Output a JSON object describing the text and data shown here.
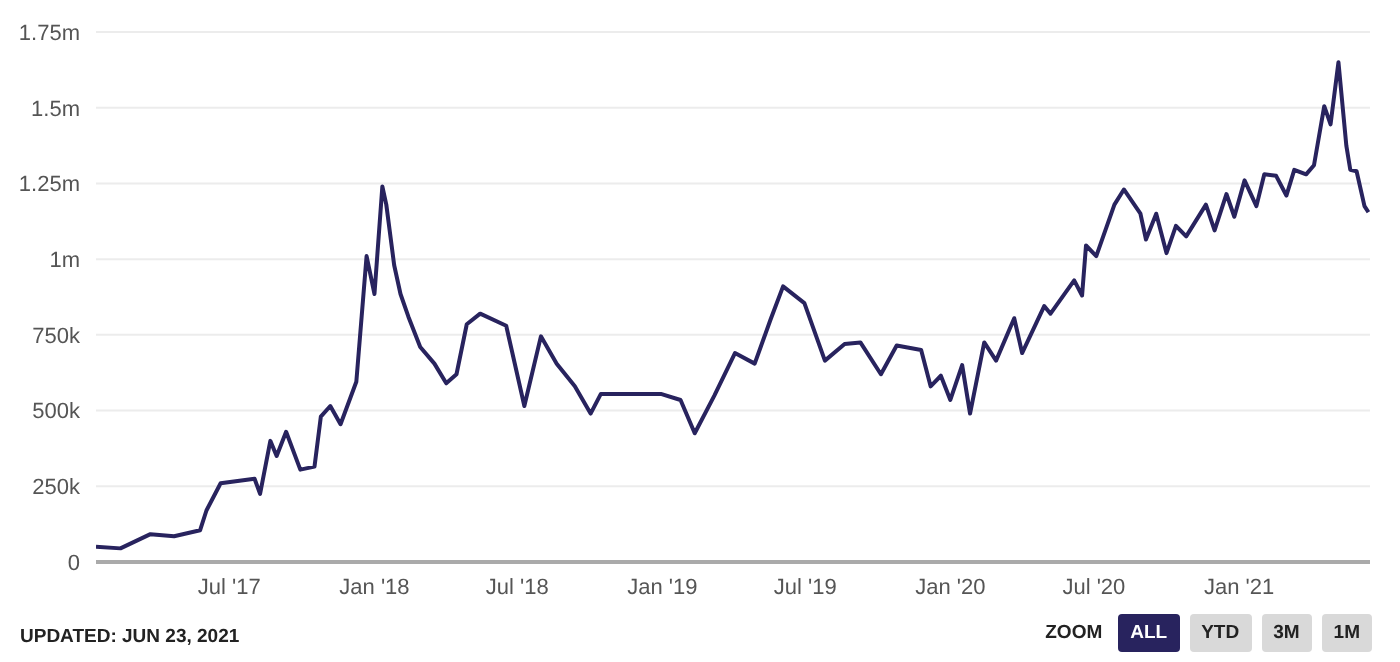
{
  "chart_data": {
    "type": "line",
    "x": [
      "2017-01-13",
      "2017-02-13",
      "2017-03-23",
      "2017-04-22",
      "2017-05-25",
      "2017-06-02",
      "2017-06-20",
      "2017-08-02",
      "2017-08-09",
      "2017-08-22",
      "2017-08-30",
      "2017-09-11",
      "2017-09-29",
      "2017-10-17",
      "2017-10-25",
      "2017-11-06",
      "2017-11-19",
      "2017-12-09",
      "2017-12-22",
      "2018-01-01",
      "2018-01-11",
      "2018-01-16",
      "2018-01-26",
      "2018-02-03",
      "2018-02-13",
      "2018-02-28",
      "2018-03-18",
      "2018-04-02",
      "2018-04-15",
      "2018-04-28",
      "2018-05-15",
      "2018-06-17",
      "2018-07-10",
      "2018-07-31",
      "2018-08-20",
      "2018-09-12",
      "2018-10-02",
      "2018-10-15",
      "2018-11-27",
      "2018-12-30",
      "2019-01-24",
      "2019-02-11",
      "2019-03-08",
      "2019-04-03",
      "2019-04-28",
      "2019-05-18",
      "2019-06-03",
      "2019-06-30",
      "2019-07-26",
      "2019-08-20",
      "2019-09-09",
      "2019-10-05",
      "2019-10-25",
      "2019-11-25",
      "2019-12-07",
      "2019-12-20",
      "2020-01-01",
      "2020-01-16",
      "2020-01-26",
      "2020-02-13",
      "2020-02-28",
      "2020-03-22",
      "2020-04-01",
      "2020-04-29",
      "2020-05-07",
      "2020-06-06",
      "2020-06-16",
      "2020-06-21",
      "2020-07-04",
      "2020-07-27",
      "2020-08-08",
      "2020-08-29",
      "2020-09-05",
      "2020-09-18",
      "2020-10-01",
      "2020-10-13",
      "2020-10-26",
      "2020-11-20",
      "2020-12-01",
      "2020-12-16",
      "2020-12-26",
      "2021-01-08",
      "2021-01-23",
      "2021-02-02",
      "2021-02-17",
      "2021-03-02",
      "2021-03-12",
      "2021-03-27",
      "2021-04-06",
      "2021-04-19",
      "2021-04-27",
      "2021-05-07",
      "2021-05-17",
      "2021-05-22",
      "2021-05-30",
      "2021-06-09",
      "2021-06-14"
    ],
    "series": [
      {
        "color": "#28235e",
        "values": [
          50000,
          45000,
          92000,
          85000,
          105000,
          170000,
          260000,
          275000,
          225000,
          400000,
          350000,
          430000,
          305000,
          315000,
          480000,
          515000,
          455000,
          595000,
          1010000,
          885000,
          1240000,
          1180000,
          980000,
          885000,
          810000,
          710000,
          655000,
          590000,
          620000,
          785000,
          820000,
          780000,
          515000,
          745000,
          655000,
          580000,
          490000,
          555000,
          555000,
          555000,
          535000,
          425000,
          550000,
          690000,
          655000,
          800000,
          910000,
          855000,
          665000,
          720000,
          725000,
          620000,
          715000,
          700000,
          580000,
          615000,
          535000,
          650000,
          490000,
          725000,
          665000,
          805000,
          690000,
          845000,
          820000,
          930000,
          880000,
          1045000,
          1010000,
          1180000,
          1230000,
          1150000,
          1065000,
          1150000,
          1020000,
          1110000,
          1075000,
          1180000,
          1095000,
          1215000,
          1140000,
          1260000,
          1175000,
          1280000,
          1275000,
          1210000,
          1295000,
          1280000,
          1310000,
          1505000,
          1445000,
          1650000,
          1375000,
          1295000,
          1290000,
          1175000,
          1155000
        ]
      }
    ],
    "xlim": [
      "2017-01-13",
      "2021-06-16"
    ],
    "xticks": [
      {
        "value": "2017-07-01",
        "label": "Jul '17"
      },
      {
        "value": "2018-01-01",
        "label": "Jan '18"
      },
      {
        "value": "2018-07-01",
        "label": "Jul '18"
      },
      {
        "value": "2019-01-01",
        "label": "Jan '19"
      },
      {
        "value": "2019-07-01",
        "label": "Jul '19"
      },
      {
        "value": "2020-01-01",
        "label": "Jan '20"
      },
      {
        "value": "2020-07-01",
        "label": "Jul '20"
      },
      {
        "value": "2021-01-01",
        "label": "Jan '21"
      }
    ],
    "ylim": [
      0,
      1750000
    ],
    "yticks": [
      0,
      {
        "value": 250000,
        "label": "250k"
      },
      {
        "value": 500000,
        "label": "500k"
      },
      {
        "value": 750000,
        "label": "750k"
      },
      {
        "value": 1000000,
        "label": "1m"
      },
      {
        "value": 1250000,
        "label": "1.25m"
      },
      {
        "value": 1500000,
        "label": "1.5m"
      },
      {
        "value": 1750000,
        "label": "1.75m"
      }
    ],
    "grid": "y",
    "marker": "none",
    "line_style": "solid",
    "annotations": [
      "UPDATED: JUN 23, 2021",
      "ZOOM",
      "ALL",
      "YTD",
      "3M",
      "1M"
    ]
  }
}
